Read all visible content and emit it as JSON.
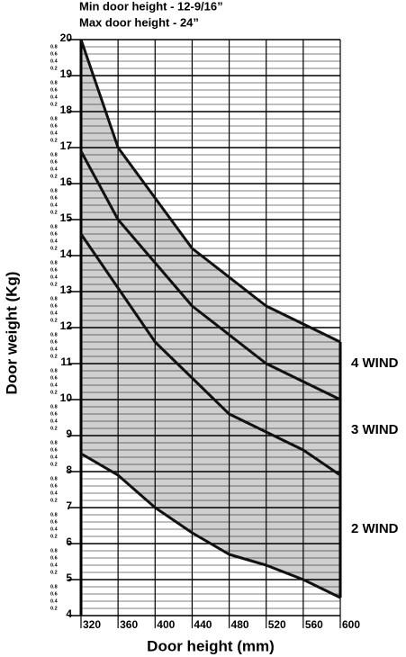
{
  "chart_data": {
    "type": "line",
    "title": "Min door height - 12-9/16”",
    "subtitle": "Max door height - 24”",
    "x_label": "Door height (mm)",
    "y_label": "Door weight (Kg)",
    "x": [
      320,
      360,
      400,
      440,
      480,
      520,
      560,
      600
    ],
    "series": [
      {
        "color": "#111111",
        "values": [
          20,
          17,
          15.6,
          14.2,
          13.4,
          12.6,
          12.1,
          11.6
        ]
      },
      {
        "color": "#111111",
        "values": [
          16.9,
          15.0,
          13.8,
          12.6,
          11.8,
          11.0,
          10.5,
          10.0
        ]
      },
      {
        "color": "#111111",
        "values": [
          14.6,
          13.1,
          11.6,
          10.6,
          9.6,
          9.1,
          8.6,
          7.9
        ]
      },
      {
        "color": "#111111",
        "values": [
          8.5,
          7.9,
          7.0,
          6.3,
          5.7,
          5.4,
          5.0,
          4.5
        ]
      }
    ],
    "fill_color": "#cfcfcf",
    "annotations": [
      "4 WIND",
      "3 WIND",
      "2 WIND"
    ],
    "xlim": [
      320,
      600
    ],
    "xticks": [
      320,
      360,
      400,
      440,
      480,
      520,
      560,
      600
    ],
    "ylim": [
      4,
      20
    ],
    "yticks": [
      4,
      5,
      6,
      7,
      8,
      9,
      10,
      11,
      12,
      13,
      14,
      15,
      16,
      17,
      18,
      19,
      20
    ],
    "minor_yticks": [
      {
        "value": 4.2,
        "label": "0.2"
      },
      {
        "value": 4.4,
        "label": "0.4"
      },
      {
        "value": 4.6,
        "label": "0.6"
      },
      {
        "value": 4.8,
        "label": "0.8"
      },
      {
        "value": 5.2,
        "label": "0.2"
      },
      {
        "value": 5.4,
        "label": "0.4"
      },
      {
        "value": 5.6,
        "label": "0.6"
      },
      {
        "value": 5.8,
        "label": "0.8"
      },
      {
        "value": 6.2,
        "label": "0.2"
      },
      {
        "value": 6.4,
        "label": "0.4"
      },
      {
        "value": 6.6,
        "label": "0.6"
      },
      {
        "value": 6.8,
        "label": "0.8"
      },
      {
        "value": 7.2,
        "label": "0.2"
      },
      {
        "value": 7.4,
        "label": "0.4"
      },
      {
        "value": 7.6,
        "label": "0.6"
      },
      {
        "value": 7.8,
        "label": "0.8"
      },
      {
        "value": 8.2,
        "label": "0.2"
      },
      {
        "value": 8.4,
        "label": "0.4"
      },
      {
        "value": 8.6,
        "label": "0.6"
      },
      {
        "value": 8.8,
        "label": "0.8"
      },
      {
        "value": 9.2,
        "label": "0.2"
      },
      {
        "value": 9.4,
        "label": "0.4"
      },
      {
        "value": 9.6,
        "label": "0.6"
      },
      {
        "value": 9.8,
        "label": "0.8"
      },
      {
        "value": 10.2,
        "label": "0.2"
      },
      {
        "value": 10.4,
        "label": "0.4"
      },
      {
        "value": 10.6,
        "label": "0.6"
      },
      {
        "value": 10.8,
        "label": "0.8"
      },
      {
        "value": 11.2,
        "label": "0.2"
      },
      {
        "value": 11.4,
        "label": "0.4"
      },
      {
        "value": 11.6,
        "label": "0.6"
      },
      {
        "value": 11.8,
        "label": "0.8"
      },
      {
        "value": 12.2,
        "label": "0.2"
      },
      {
        "value": 12.4,
        "label": "0.4"
      },
      {
        "value": 12.6,
        "label": "0.6"
      },
      {
        "value": 12.8,
        "label": "0.8"
      },
      {
        "value": 13.2,
        "label": "0.2"
      },
      {
        "value": 13.4,
        "label": "0.4"
      },
      {
        "value": 13.6,
        "label": "0.6"
      },
      {
        "value": 13.8,
        "label": "0.8"
      },
      {
        "value": 14.2,
        "label": "0.2"
      },
      {
        "value": 14.4,
        "label": "0.4"
      },
      {
        "value": 14.6,
        "label": "0.6"
      },
      {
        "value": 14.8,
        "label": "0.8"
      },
      {
        "value": 15.2,
        "label": "0.2"
      },
      {
        "value": 15.4,
        "label": "0.4"
      },
      {
        "value": 15.6,
        "label": "0.6"
      },
      {
        "value": 15.8,
        "label": "0.8"
      },
      {
        "value": 16.2,
        "label": "0.2"
      },
      {
        "value": 16.4,
        "label": "0.4"
      },
      {
        "value": 16.6,
        "label": "0.6"
      },
      {
        "value": 16.8,
        "label": "0.8"
      },
      {
        "value": 17.2,
        "label": "0.2"
      },
      {
        "value": 17.4,
        "label": "0.4"
      },
      {
        "value": 17.6,
        "label": "0.6"
      },
      {
        "value": 17.8,
        "label": "0.8"
      },
      {
        "value": 18.2,
        "label": "0.2"
      },
      {
        "value": 18.4,
        "label": "0.4"
      },
      {
        "value": 18.6,
        "label": "0.6"
      },
      {
        "value": 18.8,
        "label": "0.8"
      },
      {
        "value": 19.2,
        "label": "0.2"
      },
      {
        "value": 19.4,
        "label": "0.4"
      },
      {
        "value": 19.6,
        "label": "0.6"
      },
      {
        "value": 19.8,
        "label": "0.8"
      }
    ],
    "grid": true
  }
}
